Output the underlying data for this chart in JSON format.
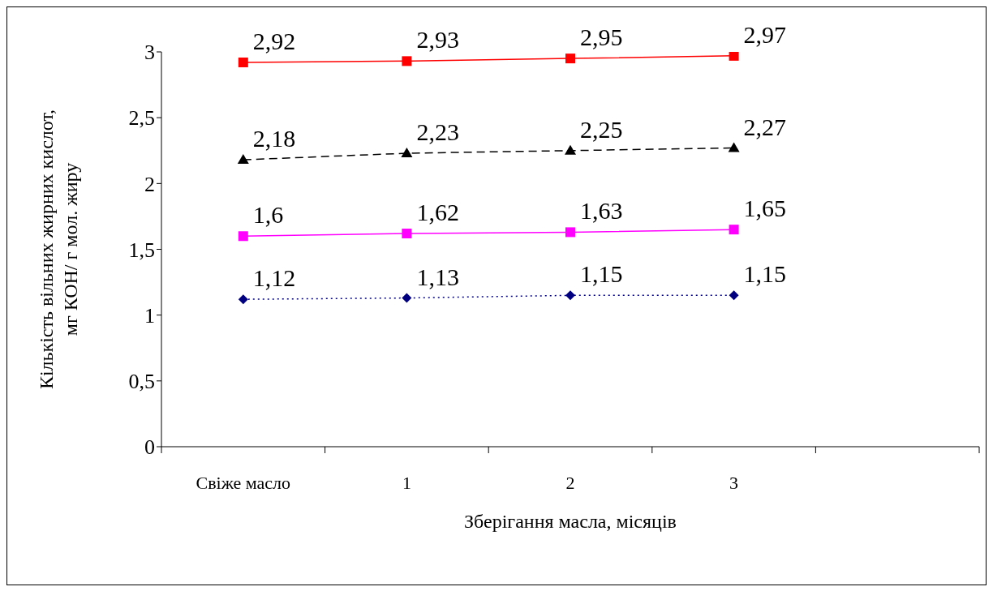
{
  "chart_data": {
    "type": "line",
    "xlabel": "Зберігання масла, місяців",
    "ylabel": "Кількість вільних жирних кислот,\nмг КОН/ г мол. жиру",
    "categories": [
      "Свіже масло",
      "1",
      "2",
      "3",
      null
    ],
    "ylim": [
      0,
      3
    ],
    "yticks": [
      0,
      {
        "value": 0.5,
        "label": "0,5"
      },
      1,
      {
        "value": 1.5,
        "label": "1,5"
      },
      2,
      {
        "value": 2.5,
        "label": "2,5"
      },
      3
    ],
    "grid": false,
    "legend": false,
    "series": [
      {
        "color": "#000080",
        "values": [
          1.12,
          1.13,
          1.15,
          1.15,
          null
        ],
        "value_labels": [
          "1,12",
          "1,13",
          "1,15",
          "1,15",
          null
        ],
        "marker": "diamond",
        "line_style": "dotted"
      },
      {
        "color": "#ff00ff",
        "values": [
          1.6,
          1.62,
          1.63,
          1.65,
          null
        ],
        "value_labels": [
          "1,6",
          "1,62",
          "1,63",
          "1,65",
          null
        ],
        "marker": "square",
        "line_style": "solid"
      },
      {
        "color": "#000000",
        "values": [
          2.18,
          2.23,
          2.25,
          2.27,
          null
        ],
        "value_labels": [
          "2,18",
          "2,23",
          "2,25",
          "2,27",
          null
        ],
        "marker": "triangle",
        "line_style": "dashed"
      },
      {
        "color": "#ff0000",
        "values": [
          2.92,
          2.93,
          2.95,
          2.97,
          null
        ],
        "value_labels": [
          "2,92",
          "2,93",
          "2,95",
          "2,97",
          null
        ],
        "marker": "square",
        "line_style": "solid"
      }
    ]
  }
}
